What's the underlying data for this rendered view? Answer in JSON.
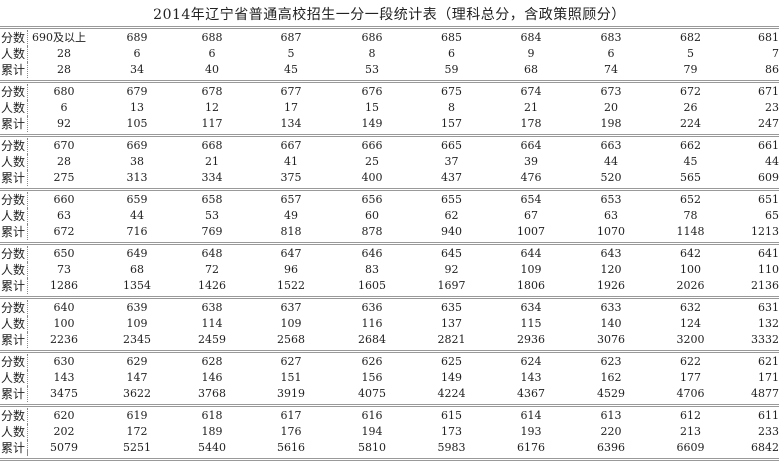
{
  "title": "2014年辽宁省普通高校招生一分一段统计表（理科总分，含政策照顾分）",
  "row_labels": [
    "分数",
    "人数",
    "累计"
  ],
  "blocks": [
    {
      "score": [
        "690及以上",
        "689",
        "688",
        "687",
        "686",
        "685",
        "684",
        "683",
        "682",
        "681"
      ],
      "count": [
        "28",
        "6",
        "6",
        "5",
        "8",
        "6",
        "9",
        "6",
        "5",
        "7"
      ],
      "cumulative": [
        "28",
        "34",
        "40",
        "45",
        "53",
        "59",
        "68",
        "74",
        "79",
        "86"
      ]
    },
    {
      "score": [
        "680",
        "679",
        "678",
        "677",
        "676",
        "675",
        "674",
        "673",
        "672",
        "671"
      ],
      "count": [
        "6",
        "13",
        "12",
        "17",
        "15",
        "8",
        "21",
        "20",
        "26",
        "23"
      ],
      "cumulative": [
        "92",
        "105",
        "117",
        "134",
        "149",
        "157",
        "178",
        "198",
        "224",
        "247"
      ]
    },
    {
      "score": [
        "670",
        "669",
        "668",
        "667",
        "666",
        "665",
        "664",
        "663",
        "662",
        "661"
      ],
      "count": [
        "28",
        "38",
        "21",
        "41",
        "25",
        "37",
        "39",
        "44",
        "45",
        "44"
      ],
      "cumulative": [
        "275",
        "313",
        "334",
        "375",
        "400",
        "437",
        "476",
        "520",
        "565",
        "609"
      ]
    },
    {
      "score": [
        "660",
        "659",
        "658",
        "657",
        "656",
        "655",
        "654",
        "653",
        "652",
        "651"
      ],
      "count": [
        "63",
        "44",
        "53",
        "49",
        "60",
        "62",
        "67",
        "63",
        "78",
        "65"
      ],
      "cumulative": [
        "672",
        "716",
        "769",
        "818",
        "878",
        "940",
        "1007",
        "1070",
        "1148",
        "1213"
      ]
    },
    {
      "score": [
        "650",
        "649",
        "648",
        "647",
        "646",
        "645",
        "644",
        "643",
        "642",
        "641"
      ],
      "count": [
        "73",
        "68",
        "72",
        "96",
        "83",
        "92",
        "109",
        "120",
        "100",
        "110"
      ],
      "cumulative": [
        "1286",
        "1354",
        "1426",
        "1522",
        "1605",
        "1697",
        "1806",
        "1926",
        "2026",
        "2136"
      ]
    },
    {
      "score": [
        "640",
        "639",
        "638",
        "637",
        "636",
        "635",
        "634",
        "633",
        "632",
        "631"
      ],
      "count": [
        "100",
        "109",
        "114",
        "109",
        "116",
        "137",
        "115",
        "140",
        "124",
        "132"
      ],
      "cumulative": [
        "2236",
        "2345",
        "2459",
        "2568",
        "2684",
        "2821",
        "2936",
        "3076",
        "3200",
        "3332"
      ]
    },
    {
      "score": [
        "630",
        "629",
        "628",
        "627",
        "626",
        "625",
        "624",
        "623",
        "622",
        "621"
      ],
      "count": [
        "143",
        "147",
        "146",
        "151",
        "156",
        "149",
        "143",
        "162",
        "177",
        "171"
      ],
      "cumulative": [
        "3475",
        "3622",
        "3768",
        "3919",
        "4075",
        "4224",
        "4367",
        "4529",
        "4706",
        "4877"
      ]
    },
    {
      "score": [
        "620",
        "619",
        "618",
        "617",
        "616",
        "615",
        "614",
        "613",
        "612",
        "611"
      ],
      "count": [
        "202",
        "172",
        "189",
        "176",
        "194",
        "173",
        "193",
        "220",
        "213",
        "233"
      ],
      "cumulative": [
        "5079",
        "5251",
        "5440",
        "5616",
        "5810",
        "5983",
        "6176",
        "6396",
        "6609",
        "6842"
      ]
    }
  ]
}
